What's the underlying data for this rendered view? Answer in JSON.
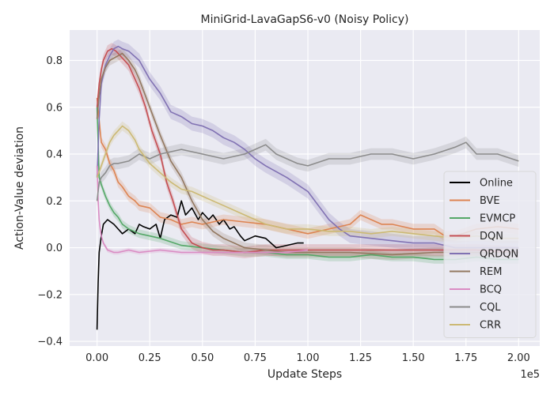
{
  "chart_data": {
    "type": "line",
    "title": "MiniGrid-LavaGapS6-v0 (Noisy Policy)",
    "xlabel": "Update Steps",
    "ylabel": "Action-Value deviation",
    "x_multiplier_label": "1e5",
    "xlim": [
      -0.13,
      2.1
    ],
    "ylim": [
      -0.42,
      0.93
    ],
    "xticks": [
      0.0,
      0.25,
      0.5,
      0.75,
      1.0,
      1.25,
      1.5,
      1.75,
      2.0
    ],
    "xtick_labels": [
      "0.00",
      "0.25",
      "0.50",
      "0.75",
      "1.00",
      "1.25",
      "1.50",
      "1.75",
      "2.00"
    ],
    "yticks": [
      -0.4,
      -0.2,
      0.0,
      0.2,
      0.4,
      0.6,
      0.8
    ],
    "ytick_labels": [
      "−0.4",
      "−0.2",
      "0.0",
      "0.2",
      "0.4",
      "0.6",
      "0.8"
    ],
    "grid": true,
    "legend_position": "right",
    "series": [
      {
        "name": "Online",
        "color": "#000000",
        "band": 0,
        "x": [
          0,
          0.005,
          0.01,
          0.02,
          0.03,
          0.05,
          0.08,
          0.1,
          0.12,
          0.15,
          0.18,
          0.2,
          0.22,
          0.25,
          0.28,
          0.3,
          0.32,
          0.35,
          0.38,
          0.4,
          0.42,
          0.45,
          0.48,
          0.5,
          0.53,
          0.55,
          0.58,
          0.6,
          0.63,
          0.65,
          0.68,
          0.7,
          0.75,
          0.8,
          0.85,
          0.9,
          0.95,
          0.98
        ],
        "y": [
          -0.35,
          -0.15,
          -0.02,
          0.05,
          0.1,
          0.12,
          0.1,
          0.08,
          0.06,
          0.08,
          0.06,
          0.1,
          0.09,
          0.08,
          0.1,
          0.04,
          0.12,
          0.14,
          0.13,
          0.2,
          0.14,
          0.17,
          0.12,
          0.15,
          0.12,
          0.14,
          0.1,
          0.12,
          0.08,
          0.09,
          0.05,
          0.03,
          0.05,
          0.04,
          0.0,
          0.01,
          0.02,
          0.02
        ]
      },
      {
        "name": "BVE",
        "color": "#dd8452",
        "band": 0.022,
        "x": [
          0,
          0.02,
          0.04,
          0.06,
          0.08,
          0.1,
          0.12,
          0.15,
          0.18,
          0.2,
          0.25,
          0.3,
          0.35,
          0.4,
          0.45,
          0.5,
          0.6,
          0.7,
          0.8,
          0.9,
          1.0,
          1.1,
          1.2,
          1.25,
          1.3,
          1.35,
          1.4,
          1.5,
          1.6,
          1.65,
          1.7,
          1.8,
          1.9,
          2.0
        ],
        "y": [
          0.64,
          0.45,
          0.42,
          0.36,
          0.33,
          0.28,
          0.26,
          0.22,
          0.2,
          0.18,
          0.17,
          0.13,
          0.12,
          0.1,
          0.11,
          0.1,
          0.12,
          0.11,
          0.1,
          0.08,
          0.06,
          0.08,
          0.1,
          0.14,
          0.12,
          0.1,
          0.1,
          0.08,
          0.08,
          0.05,
          0.05,
          0.08,
          0.09,
          0.08
        ]
      },
      {
        "name": "EVMCP",
        "color": "#55a868",
        "band": 0.018,
        "x": [
          0,
          0.01,
          0.02,
          0.04,
          0.06,
          0.08,
          0.1,
          0.12,
          0.15,
          0.2,
          0.25,
          0.3,
          0.4,
          0.5,
          0.6,
          0.7,
          0.8,
          0.9,
          1.0,
          1.1,
          1.2,
          1.3,
          1.4,
          1.5,
          1.6,
          1.7,
          1.8,
          1.9,
          2.0
        ],
        "y": [
          0.6,
          0.3,
          0.27,
          0.22,
          0.18,
          0.15,
          0.13,
          0.1,
          0.08,
          0.06,
          0.05,
          0.04,
          0.01,
          0.0,
          -0.01,
          -0.02,
          -0.02,
          -0.03,
          -0.03,
          -0.04,
          -0.04,
          -0.03,
          -0.04,
          -0.04,
          -0.05,
          -0.05,
          -0.04,
          -0.05,
          -0.05
        ]
      },
      {
        "name": "DQN",
        "color": "#c44e52",
        "band": 0.025,
        "x": [
          0,
          0.01,
          0.02,
          0.03,
          0.05,
          0.07,
          0.09,
          0.11,
          0.13,
          0.15,
          0.18,
          0.2,
          0.23,
          0.26,
          0.3,
          0.33,
          0.36,
          0.4,
          0.45,
          0.5,
          0.55,
          0.6,
          0.7,
          0.8,
          0.9,
          1.0,
          1.2,
          1.4,
          1.6,
          1.8,
          2.0
        ],
        "y": [
          0.6,
          0.7,
          0.76,
          0.8,
          0.84,
          0.85,
          0.84,
          0.82,
          0.8,
          0.78,
          0.72,
          0.68,
          0.6,
          0.5,
          0.4,
          0.28,
          0.2,
          0.08,
          0.02,
          0.0,
          -0.01,
          -0.01,
          -0.02,
          -0.01,
          -0.01,
          -0.01,
          -0.01,
          -0.01,
          -0.01,
          -0.01,
          -0.02
        ]
      },
      {
        "name": "QRDQN",
        "color": "#8172b3",
        "band": 0.03,
        "x": [
          0,
          0.01,
          0.02,
          0.04,
          0.06,
          0.08,
          0.1,
          0.12,
          0.15,
          0.2,
          0.25,
          0.3,
          0.35,
          0.4,
          0.45,
          0.5,
          0.55,
          0.6,
          0.65,
          0.7,
          0.75,
          0.8,
          0.9,
          1.0,
          1.05,
          1.1,
          1.15,
          1.2,
          1.3,
          1.4,
          1.5,
          1.6,
          1.65,
          1.7,
          1.8,
          1.9,
          2.0
        ],
        "y": [
          0.3,
          0.55,
          0.7,
          0.78,
          0.82,
          0.85,
          0.86,
          0.85,
          0.84,
          0.8,
          0.72,
          0.66,
          0.58,
          0.56,
          0.53,
          0.52,
          0.5,
          0.47,
          0.45,
          0.42,
          0.38,
          0.35,
          0.3,
          0.24,
          0.18,
          0.12,
          0.08,
          0.05,
          0.04,
          0.03,
          0.02,
          0.02,
          0.01,
          0.0,
          0.0,
          0.0,
          0.0
        ]
      },
      {
        "name": "REM",
        "color": "#937860",
        "band": 0.022,
        "x": [
          0,
          0.01,
          0.02,
          0.04,
          0.06,
          0.08,
          0.1,
          0.12,
          0.15,
          0.18,
          0.2,
          0.25,
          0.3,
          0.35,
          0.4,
          0.45,
          0.5,
          0.55,
          0.6,
          0.65,
          0.7,
          0.8,
          0.9,
          1.0,
          1.2,
          1.4,
          1.6,
          1.8,
          2.0
        ],
        "y": [
          0.55,
          0.65,
          0.72,
          0.77,
          0.8,
          0.81,
          0.82,
          0.83,
          0.8,
          0.76,
          0.72,
          0.6,
          0.48,
          0.37,
          0.3,
          0.2,
          0.12,
          0.07,
          0.04,
          0.02,
          0.0,
          -0.01,
          -0.02,
          -0.02,
          -0.02,
          -0.03,
          -0.02,
          -0.02,
          -0.02
        ]
      },
      {
        "name": "BCQ",
        "color": "#da8bc3",
        "band": 0.01,
        "x": [
          0,
          0.005,
          0.01,
          0.015,
          0.02,
          0.03,
          0.05,
          0.08,
          0.1,
          0.15,
          0.2,
          0.3,
          0.4,
          0.5,
          0.6,
          0.7,
          0.8,
          0.9,
          1.0
        ],
        "y": [
          0.35,
          0.2,
          0.12,
          0.08,
          0.05,
          0.02,
          -0.01,
          -0.02,
          -0.02,
          -0.01,
          -0.02,
          -0.01,
          -0.02,
          -0.02,
          -0.02,
          -0.02,
          -0.02,
          -0.02,
          -0.01
        ]
      },
      {
        "name": "CQL",
        "color": "#8c8c8c",
        "band": 0.025,
        "x": [
          0,
          0.01,
          0.02,
          0.04,
          0.06,
          0.08,
          0.1,
          0.15,
          0.2,
          0.25,
          0.3,
          0.4,
          0.5,
          0.6,
          0.7,
          0.75,
          0.8,
          0.85,
          0.9,
          0.95,
          1.0,
          1.1,
          1.2,
          1.3,
          1.4,
          1.5,
          1.6,
          1.7,
          1.75,
          1.8,
          1.9,
          2.0
        ],
        "y": [
          0.2,
          0.28,
          0.3,
          0.32,
          0.35,
          0.36,
          0.36,
          0.37,
          0.4,
          0.38,
          0.4,
          0.42,
          0.4,
          0.38,
          0.4,
          0.42,
          0.44,
          0.4,
          0.38,
          0.36,
          0.35,
          0.38,
          0.38,
          0.4,
          0.4,
          0.38,
          0.4,
          0.43,
          0.45,
          0.4,
          0.4,
          0.37
        ]
      },
      {
        "name": "CRR",
        "color": "#ccb974",
        "band": 0.02,
        "x": [
          0,
          0.02,
          0.04,
          0.06,
          0.08,
          0.1,
          0.12,
          0.15,
          0.18,
          0.2,
          0.25,
          0.3,
          0.35,
          0.4,
          0.45,
          0.5,
          0.55,
          0.6,
          0.7,
          0.8,
          0.9,
          1.0,
          1.1,
          1.2,
          1.3,
          1.4,
          1.5,
          1.6,
          1.7,
          1.8,
          1.9,
          2.0
        ],
        "y": [
          0.3,
          0.35,
          0.4,
          0.45,
          0.48,
          0.5,
          0.52,
          0.5,
          0.46,
          0.42,
          0.36,
          0.32,
          0.28,
          0.25,
          0.24,
          0.22,
          0.2,
          0.18,
          0.14,
          0.1,
          0.08,
          0.08,
          0.07,
          0.07,
          0.06,
          0.07,
          0.06,
          0.05,
          0.04,
          0.05,
          0.04,
          0.04
        ]
      }
    ]
  }
}
